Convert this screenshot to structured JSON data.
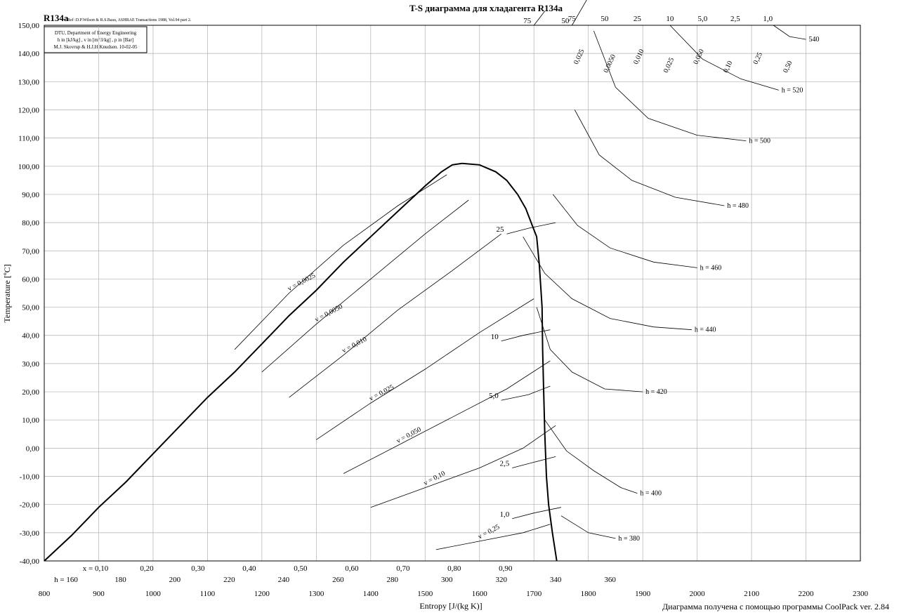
{
  "chart_data": {
    "type": "line",
    "title": "T-S диаграмма для хладагента R134a",
    "refrigerant": "R134a",
    "reference": "Ref :D.P.Wilson & R.S.Basu, ASHRAE Transactions 1988, Vol.94 part 2.",
    "info_lines": [
      "DTU, Department of Energy Engineering",
      "h in [kJ/kg] , v in [m^3/kg] , p in [Bar]",
      "M.J. Skovrup & H.J.H Knudsen. 10-02-05"
    ],
    "xlabel": "Entropy [J/(kg K)]",
    "ylabel": "Temperature [ºC]",
    "xlim": [
      800,
      2300
    ],
    "ylim": [
      -40,
      150
    ],
    "x_ticks": [
      "800",
      "900",
      "1000",
      "1100",
      "1200",
      "1300",
      "1400",
      "1500",
      "1600",
      "1700",
      "1800",
      "1900",
      "2000",
      "2100",
      "2200",
      "2300"
    ],
    "y_ticks": [
      "-40,00",
      "-30,00",
      "-20,00",
      "-10,00",
      "0,00",
      "10,00",
      "20,00",
      "30,00",
      "40,00",
      "50,00",
      "60,00",
      "70,00",
      "80,00",
      "90,00",
      "100,00",
      "110,00",
      "120,00",
      "130,00",
      "140,00",
      "150,00"
    ],
    "grid": true,
    "footer": "Диаграмма получена с помощью программы CoolPack ver. 2.84",
    "critical_point": {
      "s": 1568,
      "T": 101
    },
    "saturation_liquid": [
      [
        800,
        -40
      ],
      [
        850,
        -31
      ],
      [
        900,
        -21
      ],
      [
        950,
        -12
      ],
      [
        1000,
        -2
      ],
      [
        1050,
        8
      ],
      [
        1100,
        18
      ],
      [
        1150,
        27
      ],
      [
        1200,
        37
      ],
      [
        1250,
        47
      ],
      [
        1300,
        56
      ],
      [
        1350,
        66
      ],
      [
        1400,
        75
      ],
      [
        1450,
        84
      ],
      [
        1500,
        93
      ],
      [
        1530,
        98
      ],
      [
        1550,
        100.5
      ],
      [
        1568,
        101
      ]
    ],
    "saturation_vapour": [
      [
        1568,
        101
      ],
      [
        1600,
        100.5
      ],
      [
        1630,
        98
      ],
      [
        1650,
        95
      ],
      [
        1670,
        90
      ],
      [
        1685,
        85
      ],
      [
        1695,
        80
      ],
      [
        1705,
        75
      ],
      [
        1710,
        65
      ],
      [
        1715,
        50
      ],
      [
        1716,
        35
      ],
      [
        1718,
        20
      ],
      [
        1720,
        5
      ],
      [
        1723,
        -10
      ],
      [
        1727,
        -20
      ],
      [
        1734,
        -30
      ],
      [
        1742,
        -40
      ]
    ],
    "quality_labels": [
      "x = 0,10",
      "0,20",
      "0,30",
      "0,40",
      "0,50",
      "0,60",
      "0,70",
      "0,80",
      "0,90"
    ],
    "enthalpy_bottom_labels": [
      "h = 160",
      "180",
      "200",
      "220",
      "240",
      "260",
      "280",
      "300",
      "320",
      "340",
      "360"
    ],
    "enthalpy_isolines": [
      {
        "label": "h = 380",
        "points": [
          [
            1750,
            -24
          ],
          [
            1800,
            -30
          ],
          [
            1850,
            -32
          ]
        ]
      },
      {
        "label": "h = 400",
        "points": [
          [
            1720,
            10
          ],
          [
            1760,
            -1
          ],
          [
            1810,
            -8
          ],
          [
            1860,
            -14
          ],
          [
            1890,
            -16
          ]
        ]
      },
      {
        "label": "h = 420",
        "points": [
          [
            1705,
            50
          ],
          [
            1730,
            35
          ],
          [
            1770,
            27
          ],
          [
            1830,
            21
          ],
          [
            1900,
            20
          ]
        ]
      },
      {
        "label": "h = 440",
        "points": [
          [
            1680,
            75
          ],
          [
            1720,
            62
          ],
          [
            1770,
            53
          ],
          [
            1840,
            46
          ],
          [
            1920,
            43
          ],
          [
            1990,
            42
          ]
        ]
      },
      {
        "label": "h = 460",
        "points": [
          [
            1735,
            90
          ],
          [
            1780,
            79
          ],
          [
            1840,
            71
          ],
          [
            1920,
            66
          ],
          [
            2000,
            64
          ]
        ]
      },
      {
        "label": "h = 480",
        "points": [
          [
            1775,
            120
          ],
          [
            1820,
            104
          ],
          [
            1880,
            95
          ],
          [
            1960,
            89
          ],
          [
            2050,
            86
          ]
        ]
      },
      {
        "label": "h = 500",
        "points": [
          [
            1810,
            148
          ],
          [
            1850,
            128
          ],
          [
            1910,
            117
          ],
          [
            2000,
            111
          ],
          [
            2090,
            109
          ]
        ]
      },
      {
        "label": "h = 520",
        "points": [
          [
            1950,
            150
          ],
          [
            2010,
            138
          ],
          [
            2080,
            131
          ],
          [
            2150,
            127
          ]
        ]
      },
      {
        "label": "540",
        "points": [
          [
            2140,
            150
          ],
          [
            2170,
            146
          ],
          [
            2200,
            145
          ]
        ]
      }
    ],
    "pressure_isolines": [
      {
        "label": "1,0",
        "points": [
          [
            1660,
            -25
          ],
          [
            1700,
            -23
          ],
          [
            1750,
            -21
          ]
        ]
      },
      {
        "label": "2,5",
        "points": [
          [
            1660,
            -7
          ],
          [
            1700,
            -5
          ],
          [
            1740,
            -3
          ]
        ]
      },
      {
        "label": "5,0",
        "points": [
          [
            1640,
            17
          ],
          [
            1690,
            19
          ],
          [
            1730,
            22
          ]
        ]
      },
      {
        "label": "10",
        "points": [
          [
            1640,
            38
          ],
          [
            1680,
            40
          ],
          [
            1730,
            42
          ]
        ]
      },
      {
        "label": "25",
        "points": [
          [
            1650,
            76
          ],
          [
            1690,
            78
          ],
          [
            1740,
            80
          ]
        ]
      },
      {
        "label": "50",
        "points": [
          [
            1770,
            150
          ],
          [
            1800,
            160
          ]
        ]
      },
      {
        "label": "75",
        "points": [
          [
            1700,
            150
          ],
          [
            1720,
            155
          ]
        ]
      }
    ],
    "pressure_top_labels": [
      "75",
      "50",
      "25",
      "10",
      "5,0",
      "2,5",
      "1,0"
    ],
    "volume_vapour_labels": [
      "0,025",
      "0,0050",
      "0,010",
      "0,025",
      "0,050",
      "0,10",
      "0,25",
      "0,50"
    ],
    "volume_liquid_labels": [
      "v = 0,0025",
      "v = 0,0050",
      "v = 0,010",
      "v = 0,025",
      "v = 0,050",
      "v = 0,10",
      "v = 0,25"
    ],
    "volume_isolines": [
      {
        "label": "v = 0,0025",
        "points": [
          [
            1150,
            35
          ],
          [
            1250,
            55
          ],
          [
            1350,
            72
          ],
          [
            1450,
            86
          ],
          [
            1540,
            97
          ]
        ]
      },
      {
        "label": "v = 0,0050",
        "points": [
          [
            1200,
            27
          ],
          [
            1300,
            44
          ],
          [
            1400,
            60
          ],
          [
            1500,
            76
          ],
          [
            1580,
            88
          ]
        ]
      },
      {
        "label": "v = 0,010",
        "points": [
          [
            1250,
            18
          ],
          [
            1350,
            33
          ],
          [
            1450,
            49
          ],
          [
            1550,
            63
          ],
          [
            1640,
            76
          ]
        ]
      },
      {
        "label": "v = 0,025",
        "points": [
          [
            1300,
            3
          ],
          [
            1400,
            16
          ],
          [
            1500,
            28
          ],
          [
            1600,
            41
          ],
          [
            1700,
            53
          ]
        ]
      },
      {
        "label": "v = 0,050",
        "points": [
          [
            1350,
            -9
          ],
          [
            1450,
            1
          ],
          [
            1550,
            11
          ],
          [
            1650,
            21
          ],
          [
            1730,
            31
          ]
        ]
      },
      {
        "label": "v = 0,10",
        "points": [
          [
            1400,
            -21
          ],
          [
            1500,
            -14
          ],
          [
            1600,
            -7
          ],
          [
            1680,
            0
          ],
          [
            1740,
            8
          ]
        ]
      },
      {
        "label": "v = 0,25",
        "points": [
          [
            1520,
            -36
          ],
          [
            1600,
            -33
          ],
          [
            1680,
            -30
          ],
          [
            1730,
            -27
          ]
        ]
      }
    ]
  }
}
